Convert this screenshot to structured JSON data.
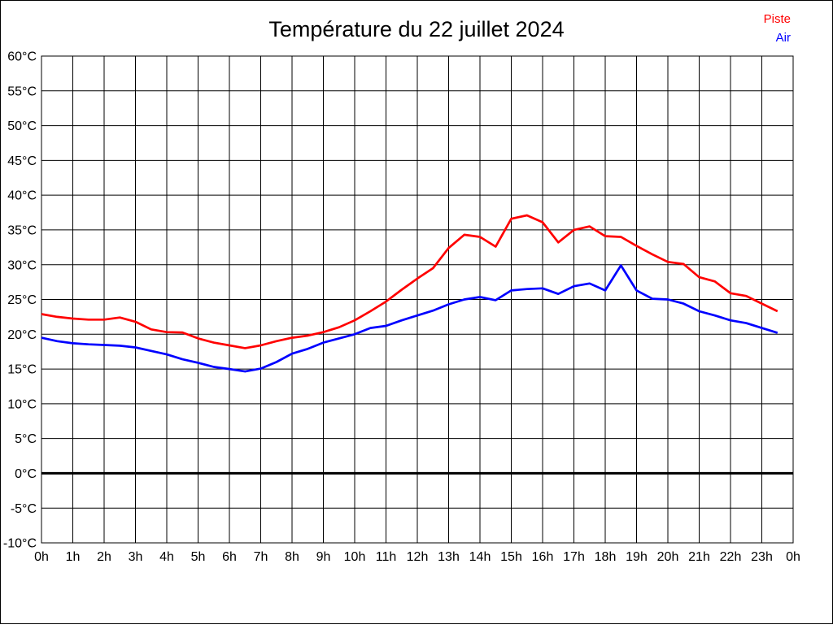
{
  "title": "Température du 22 juillet 2024",
  "legend": [
    {
      "label": "Piste",
      "color": "#ff0000"
    },
    {
      "label": "Air",
      "color": "#0000ff"
    }
  ],
  "chart_data": {
    "type": "line",
    "title": "Température du 22 juillet 2024",
    "xlabel": "",
    "ylabel": "",
    "xlim": [
      0,
      24
    ],
    "ylim": [
      -10,
      60
    ],
    "y_tick_step": 5,
    "grid": true,
    "zero_line": true,
    "legend_position": "top-right",
    "x_tick_labels": [
      "0h",
      "1h",
      "2h",
      "3h",
      "4h",
      "5h",
      "6h",
      "7h",
      "8h",
      "9h",
      "10h",
      "11h",
      "12h",
      "13h",
      "14h",
      "15h",
      "16h",
      "17h",
      "18h",
      "19h",
      "20h",
      "21h",
      "22h",
      "23h",
      "0h"
    ],
    "y_tick_labels": [
      "60°C",
      "55°C",
      "50°C",
      "45°C",
      "40°C",
      "35°C",
      "30°C",
      "25°C",
      "20°C",
      "15°C",
      "10°C",
      "5°C",
      "0°C",
      "-5°C",
      "-10°C"
    ],
    "x": [
      0,
      0.5,
      1,
      1.5,
      2,
      2.5,
      3,
      3.5,
      4,
      4.5,
      5,
      5.5,
      6,
      6.5,
      7,
      7.5,
      8,
      8.5,
      9,
      9.5,
      10,
      10.5,
      11,
      11.5,
      12,
      12.5,
      13,
      13.5,
      14,
      14.5,
      15,
      15.5,
      16,
      16.5,
      17,
      17.5,
      18,
      18.5,
      19,
      19.5,
      20,
      20.5,
      21,
      21.5,
      22,
      22.5,
      23,
      23.5
    ],
    "series": [
      {
        "name": "Piste",
        "color": "#ff0000",
        "values": [
          22.9,
          22.5,
          22.25,
          22.1,
          22.1,
          22.4,
          21.8,
          20.7,
          20.3,
          20.25,
          19.4,
          18.8,
          18.4,
          18.0,
          18.4,
          19.0,
          19.5,
          19.8,
          20.3,
          21.0,
          22.0,
          23.3,
          24.7,
          26.4,
          28.0,
          29.5,
          32.4,
          34.3,
          34.0,
          32.6,
          36.6,
          37.1,
          36.1,
          33.2,
          35.0,
          35.5,
          34.1,
          34.0,
          32.7,
          31.5,
          30.4,
          30.1,
          28.2,
          27.6,
          25.9,
          25.5,
          24.4,
          23.3
        ]
      },
      {
        "name": "Air",
        "color": "#0000ff",
        "values": [
          19.5,
          19.0,
          18.7,
          18.55,
          18.45,
          18.35,
          18.1,
          17.6,
          17.1,
          16.4,
          15.9,
          15.3,
          15.0,
          14.65,
          15.05,
          16.0,
          17.2,
          17.9,
          18.8,
          19.4,
          20.0,
          20.9,
          21.2,
          22.0,
          22.7,
          23.4,
          24.3,
          25.0,
          25.35,
          24.9,
          26.3,
          26.5,
          26.6,
          25.8,
          26.9,
          27.3,
          26.3,
          29.9,
          26.3,
          25.1,
          25.0,
          24.4,
          23.3,
          22.7,
          22.0,
          21.6,
          20.9,
          20.2
        ]
      }
    ]
  }
}
